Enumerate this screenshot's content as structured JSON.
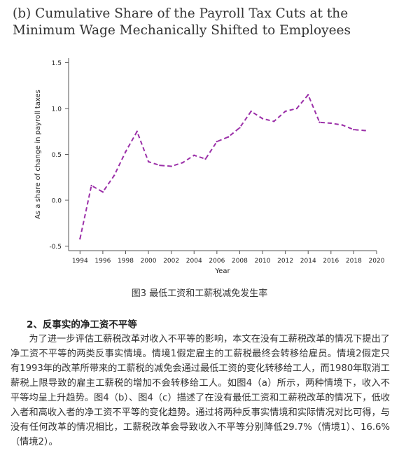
{
  "figure": {
    "title": "(b) Cumulative Share of the Payroll Tax Cuts at the Minimum Wage Mechanically Shifted to Employees",
    "caption": "图3 最低工资和工薪税减免发生率"
  },
  "chart_data": {
    "type": "line",
    "title": "(b) Cumulative Share of the Payroll Tax Cuts at the Minimum Wage Mechanically Shifted to Employees",
    "xlabel": "Year",
    "ylabel": "As a share of change in payroll taxes",
    "xlim": [
      1993,
      2020
    ],
    "ylim": [
      -0.55,
      1.55
    ],
    "x_ticks": [
      1994,
      1996,
      1998,
      2000,
      2002,
      2004,
      2006,
      2008,
      2010,
      2012,
      2014,
      2016,
      2018,
      2020
    ],
    "y_ticks": [
      -0.5,
      0.0,
      0.5,
      1.0,
      1.5
    ],
    "x_tick_labels": [
      "1994",
      "1996",
      "1998",
      "2000",
      "2002",
      "2004",
      "2006",
      "2008",
      "2010",
      "2012",
      "2014",
      "2016",
      "2018",
      "2020"
    ],
    "y_tick_labels": [
      "-0.5",
      "0.0",
      "0.5",
      "1.0",
      "1.5"
    ],
    "grid": false,
    "series": [
      {
        "color": "#9b2fa8",
        "line_style": "dashed",
        "x": [
          1994,
          1995,
          1996,
          1997,
          1998,
          1999,
          2000,
          2001,
          2002,
          2003,
          2004,
          2005,
          2006,
          2007,
          2008,
          2009,
          2010,
          2011,
          2012,
          2013,
          2014,
          2015,
          2016,
          2017,
          2018,
          2019
        ],
        "values": [
          -0.42,
          0.16,
          0.09,
          0.27,
          0.53,
          0.75,
          0.42,
          0.38,
          0.37,
          0.41,
          0.49,
          0.45,
          0.64,
          0.69,
          0.79,
          0.97,
          0.89,
          0.86,
          0.97,
          1.0,
          1.15,
          0.85,
          0.84,
          0.82,
          0.77,
          0.76
        ]
      }
    ]
  },
  "section": {
    "heading": "2、反事实的净工资不平等",
    "paragraph": "为了进一步评估工薪税改革对收入不平等的影响，本文在没有工薪税改革的情况下提出了净工资不平等的两类反事实情境。情境1假定雇主的工薪税最终会转移给雇员。情境2假定只有1993年的改革所带来的工薪税的减免会通过最低工资的变化转移给工人，而1980年取消工薪税上限导致的雇主工薪税的增加不会转移给工人。如图4（a）所示，两种情境下，收入不平等均呈上升趋势。图4（b）、图4（c）描述了在没有最低工资和工薪税改革的情况下，低收入者和高收入者的净工资不平等的变化趋势。通过将两种反事实情境和实际情况对比可得，与没有任何改革的情况相比，工薪税改革会导致收入不平等分别降低29.7%（情境1）、16.6%（情境2）。"
  }
}
